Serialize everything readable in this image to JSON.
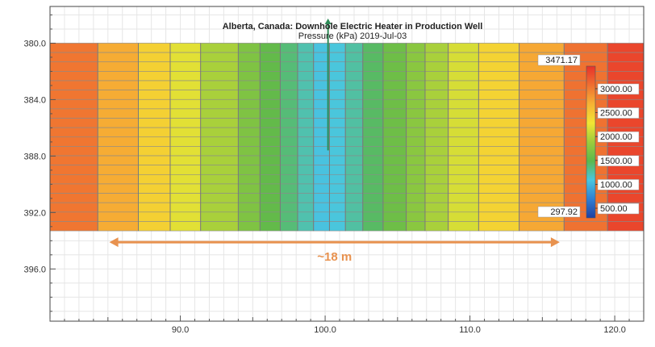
{
  "chart_data": {
    "type": "heatmap",
    "title": "Alberta, Canada: Downhole Electric Heater in Production Well",
    "subtitle": "Pressure (kPa) 2019-Jul-03",
    "xlim": [
      81,
      122
    ],
    "ylim": [
      399.7,
      377.4
    ],
    "x_ticks": [
      "90.0",
      "100.0",
      "110.0",
      "120.0"
    ],
    "y_ticks": [
      "380.0",
      "384.0",
      "388.0",
      "392.0",
      "396.0"
    ],
    "grid_x_boundaries": [
      81,
      84.3,
      87.1,
      89.3,
      91.4,
      94.0,
      95.5,
      96.9,
      98.1,
      99.2,
      100.3,
      101.4,
      102.6,
      104.0,
      105.6,
      106.9,
      108.5,
      110.6,
      113.4,
      116.5,
      119.5,
      122
    ],
    "grid_y_range": [
      380.0,
      393.3
    ],
    "grid_row_count": 20,
    "heater_well_x": 100.2,
    "colorbar": {
      "max_label": "3471.17",
      "min_label": "297.92",
      "tick_labels": [
        "3000.00",
        "2500.00",
        "2000.00",
        "1500.00",
        "1000.00",
        "500.00"
      ],
      "colors": [
        "#e8322a",
        "#ef6f31",
        "#f7b234",
        "#f2e533",
        "#9ccc3c",
        "#5bb84c",
        "#4ac6e0",
        "#2f7fd4",
        "#1f3fa0"
      ]
    },
    "annotation": {
      "text": "~18 m",
      "x_from": 85.1,
      "x_to": 116.2,
      "y": 394.1,
      "color": "#e8924f"
    }
  }
}
